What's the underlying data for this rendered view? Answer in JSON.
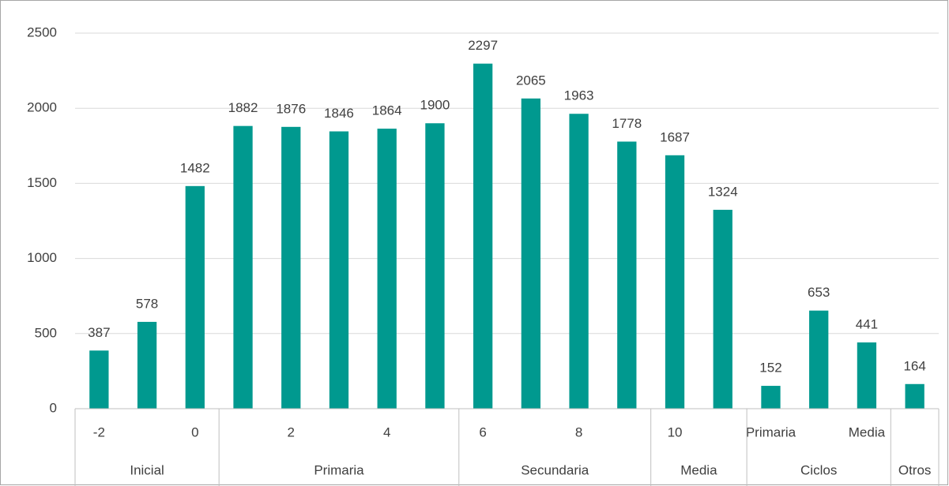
{
  "chart_data": {
    "type": "bar",
    "categories": [
      "-2",
      null,
      "0",
      null,
      "2",
      null,
      "4",
      null,
      "6",
      null,
      "8",
      null,
      "10",
      null,
      "Primaria",
      null,
      "Media",
      null
    ],
    "values": [
      387,
      578,
      1482,
      1882,
      1876,
      1846,
      1864,
      1900,
      2297,
      2065,
      1963,
      1778,
      1687,
      1324,
      152,
      653,
      441,
      164
    ],
    "groups": [
      {
        "label": "Inicial",
        "count": 3
      },
      {
        "label": "Primaria",
        "count": 5
      },
      {
        "label": "Secundaria",
        "count": 4
      },
      {
        "label": "Media",
        "count": 2
      },
      {
        "label": "Ciclos",
        "count": 3
      },
      {
        "label": "Otros",
        "count": 1
      }
    ],
    "color": "#00998f",
    "ylim": [
      0,
      2500
    ],
    "yticks": [
      0,
      500,
      1000,
      1500,
      2000,
      2500
    ],
    "grid": true
  }
}
